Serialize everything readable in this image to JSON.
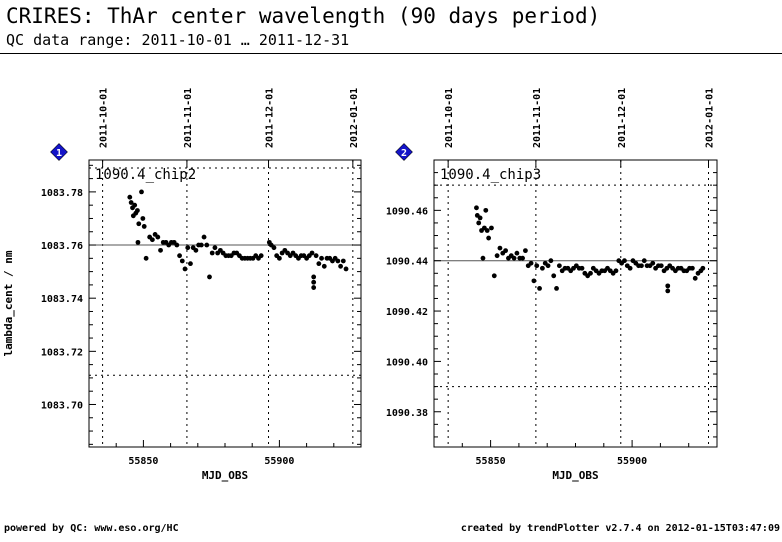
{
  "header": {
    "title": "CRIRES: ThAr center wavelength (90 days period)",
    "subtitle": "QC data range: 2011-10-01 … 2011-12-31"
  },
  "footer": {
    "left": "powered by QC: www.eso.org/HC",
    "right": "created by trendPlotter v2.7.4 on 2012-01-15T03:47:09"
  },
  "colors": {
    "badge": "#1414c8",
    "points": "#000000"
  },
  "chart_data": [
    {
      "type": "scatter",
      "badge": "1",
      "title": "1090.4_chip2",
      "xlabel": "MJD_OBS",
      "ylabel": "lambda_cent / nm",
      "xlim": [
        55830,
        55930
      ],
      "ylim": [
        1083.684,
        1083.792
      ],
      "x_ticks": [
        55850,
        55900
      ],
      "y_ticks": [
        1083.7,
        1083.72,
        1083.74,
        1083.76,
        1083.78
      ],
      "top_ticks": [
        {
          "label": "2011-10-01",
          "mjd": 55835
        },
        {
          "label": "2011-11-01",
          "mjd": 55866
        },
        {
          "label": "2011-12-01",
          "mjd": 55896
        },
        {
          "label": "2012-01-01",
          "mjd": 55927
        }
      ],
      "reference_line": 1083.76,
      "dotted_lines": [
        1083.789,
        1083.711
      ],
      "points": [
        [
          55845.0,
          1083.778
        ],
        [
          55845.5,
          1083.776
        ],
        [
          55846.0,
          1083.774
        ],
        [
          55846.3,
          1083.771
        ],
        [
          55846.8,
          1083.775
        ],
        [
          55847.2,
          1083.772
        ],
        [
          55847.8,
          1083.773
        ],
        [
          55848.3,
          1083.768
        ],
        [
          55848.0,
          1083.761
        ],
        [
          55849.3,
          1083.78
        ],
        [
          55849.8,
          1083.77
        ],
        [
          55850.3,
          1083.767
        ],
        [
          55851.0,
          1083.755
        ],
        [
          55852.3,
          1083.763
        ],
        [
          55853.3,
          1083.762
        ],
        [
          55854.3,
          1083.764
        ],
        [
          55855.3,
          1083.763
        ],
        [
          55856.3,
          1083.758
        ],
        [
          55857.3,
          1083.761
        ],
        [
          55858.3,
          1083.761
        ],
        [
          55859.3,
          1083.76
        ],
        [
          55860.3,
          1083.761
        ],
        [
          55861.3,
          1083.761
        ],
        [
          55862.3,
          1083.76
        ],
        [
          55863.3,
          1083.756
        ],
        [
          55864.3,
          1083.754
        ],
        [
          55865.3,
          1083.751
        ],
        [
          55866.3,
          1083.759
        ],
        [
          55867.3,
          1083.753
        ],
        [
          55868.3,
          1083.759
        ],
        [
          55869.3,
          1083.758
        ],
        [
          55870.3,
          1083.76
        ],
        [
          55871.3,
          1083.76
        ],
        [
          55872.3,
          1083.763
        ],
        [
          55873.3,
          1083.76
        ],
        [
          55874.3,
          1083.748
        ],
        [
          55875.3,
          1083.757
        ],
        [
          55876.3,
          1083.759
        ],
        [
          55877.3,
          1083.757
        ],
        [
          55878.3,
          1083.758
        ],
        [
          55879.3,
          1083.757
        ],
        [
          55880.3,
          1083.756
        ],
        [
          55881.3,
          1083.756
        ],
        [
          55882.3,
          1083.756
        ],
        [
          55883.3,
          1083.757
        ],
        [
          55884.3,
          1083.757
        ],
        [
          55885.3,
          1083.756
        ],
        [
          55886.3,
          1083.755
        ],
        [
          55887.3,
          1083.755
        ],
        [
          55888.3,
          1083.755
        ],
        [
          55889.3,
          1083.755
        ],
        [
          55890.3,
          1083.755
        ],
        [
          55891.3,
          1083.756
        ],
        [
          55892.3,
          1083.755
        ],
        [
          55893.3,
          1083.756
        ],
        [
          55896.3,
          1083.761
        ],
        [
          55897.0,
          1083.76
        ],
        [
          55898.0,
          1083.759
        ],
        [
          55899.0,
          1083.756
        ],
        [
          55900.0,
          1083.755
        ],
        [
          55901.0,
          1083.757
        ],
        [
          55902.0,
          1083.758
        ],
        [
          55903.0,
          1083.757
        ],
        [
          55904.0,
          1083.756
        ],
        [
          55905.0,
          1083.757
        ],
        [
          55906.0,
          1083.756
        ],
        [
          55907.0,
          1083.755
        ],
        [
          55908.0,
          1083.756
        ],
        [
          55909.0,
          1083.756
        ],
        [
          55910.0,
          1083.755
        ],
        [
          55911.0,
          1083.756
        ],
        [
          55912.0,
          1083.757
        ],
        [
          55912.6,
          1083.746
        ],
        [
          55912.6,
          1083.748
        ],
        [
          55912.6,
          1083.744
        ],
        [
          55913.5,
          1083.756
        ],
        [
          55914.5,
          1083.753
        ],
        [
          55915.5,
          1083.755
        ],
        [
          55916.5,
          1083.752
        ],
        [
          55917.5,
          1083.755
        ],
        [
          55918.5,
          1083.755
        ],
        [
          55919.5,
          1083.754
        ],
        [
          55920.5,
          1083.755
        ],
        [
          55921.5,
          1083.754
        ],
        [
          55922.5,
          1083.752
        ],
        [
          55923.5,
          1083.754
        ],
        [
          55924.5,
          1083.751
        ]
      ]
    },
    {
      "type": "scatter",
      "badge": "2",
      "title": "1090.4_chip3",
      "xlabel": "MJD_OBS",
      "ylabel": "",
      "xlim": [
        55830,
        55930
      ],
      "ylim": [
        1090.366,
        1090.48
      ],
      "x_ticks": [
        55850,
        55900
      ],
      "y_ticks": [
        1090.38,
        1090.4,
        1090.42,
        1090.44,
        1090.46
      ],
      "top_ticks": [
        {
          "label": "2011-10-01",
          "mjd": 55835
        },
        {
          "label": "2011-11-01",
          "mjd": 55866
        },
        {
          "label": "2011-12-01",
          "mjd": 55896
        },
        {
          "label": "2012-01-01",
          "mjd": 55927
        }
      ],
      "reference_line": 1090.44,
      "dotted_lines": [
        1090.47,
        1090.39
      ],
      "points": [
        [
          55845.0,
          1090.461
        ],
        [
          55845.3,
          1090.458
        ],
        [
          55845.8,
          1090.455
        ],
        [
          55846.3,
          1090.457
        ],
        [
          55846.8,
          1090.452
        ],
        [
          55847.3,
          1090.441
        ],
        [
          55847.8,
          1090.453
        ],
        [
          55848.3,
          1090.46
        ],
        [
          55848.8,
          1090.452
        ],
        [
          55849.3,
          1090.449
        ],
        [
          55850.3,
          1090.453
        ],
        [
          55851.3,
          1090.434
        ],
        [
          55852.3,
          1090.442
        ],
        [
          55853.3,
          1090.445
        ],
        [
          55854.3,
          1090.443
        ],
        [
          55855.3,
          1090.444
        ],
        [
          55856.3,
          1090.441
        ],
        [
          55857.3,
          1090.442
        ],
        [
          55858.3,
          1090.441
        ],
        [
          55859.3,
          1090.443
        ],
        [
          55860.3,
          1090.441
        ],
        [
          55861.3,
          1090.441
        ],
        [
          55862.3,
          1090.444
        ],
        [
          55863.3,
          1090.438
        ],
        [
          55864.3,
          1090.439
        ],
        [
          55865.3,
          1090.432
        ],
        [
          55866.3,
          1090.438
        ],
        [
          55867.3,
          1090.429
        ],
        [
          55868.3,
          1090.437
        ],
        [
          55869.3,
          1090.439
        ],
        [
          55870.3,
          1090.438
        ],
        [
          55871.3,
          1090.44
        ],
        [
          55872.3,
          1090.434
        ],
        [
          55873.3,
          1090.429
        ],
        [
          55874.3,
          1090.438
        ],
        [
          55875.3,
          1090.436
        ],
        [
          55876.3,
          1090.437
        ],
        [
          55877.3,
          1090.437
        ],
        [
          55878.3,
          1090.436
        ],
        [
          55879.3,
          1090.437
        ],
        [
          55880.3,
          1090.438
        ],
        [
          55881.3,
          1090.437
        ],
        [
          55882.3,
          1090.437
        ],
        [
          55883.3,
          1090.435
        ],
        [
          55884.3,
          1090.434
        ],
        [
          55885.3,
          1090.435
        ],
        [
          55886.3,
          1090.437
        ],
        [
          55887.3,
          1090.436
        ],
        [
          55888.3,
          1090.435
        ],
        [
          55889.3,
          1090.436
        ],
        [
          55890.3,
          1090.436
        ],
        [
          55891.3,
          1090.437
        ],
        [
          55892.3,
          1090.436
        ],
        [
          55893.3,
          1090.435
        ],
        [
          55894.3,
          1090.436
        ],
        [
          55895.3,
          1090.44
        ],
        [
          55896.3,
          1090.439
        ],
        [
          55897.3,
          1090.44
        ],
        [
          55898.3,
          1090.438
        ],
        [
          55899.3,
          1090.437
        ],
        [
          55900.3,
          1090.44
        ],
        [
          55901.3,
          1090.439
        ],
        [
          55902.3,
          1090.438
        ],
        [
          55903.3,
          1090.438
        ],
        [
          55904.3,
          1090.44
        ],
        [
          55905.3,
          1090.438
        ],
        [
          55906.3,
          1090.438
        ],
        [
          55907.3,
          1090.439
        ],
        [
          55908.3,
          1090.437
        ],
        [
          55909.3,
          1090.438
        ],
        [
          55910.3,
          1090.438
        ],
        [
          55911.3,
          1090.436
        ],
        [
          55912.3,
          1090.437
        ],
        [
          55912.6,
          1090.428
        ],
        [
          55912.6,
          1090.43
        ],
        [
          55913.3,
          1090.438
        ],
        [
          55914.3,
          1090.437
        ],
        [
          55915.3,
          1090.436
        ],
        [
          55916.3,
          1090.437
        ],
        [
          55917.3,
          1090.437
        ],
        [
          55918.3,
          1090.436
        ],
        [
          55919.3,
          1090.436
        ],
        [
          55920.3,
          1090.437
        ],
        [
          55921.3,
          1090.437
        ],
        [
          55922.3,
          1090.433
        ],
        [
          55923.3,
          1090.435
        ],
        [
          55924.3,
          1090.436
        ],
        [
          55925.0,
          1090.437
        ]
      ]
    }
  ]
}
